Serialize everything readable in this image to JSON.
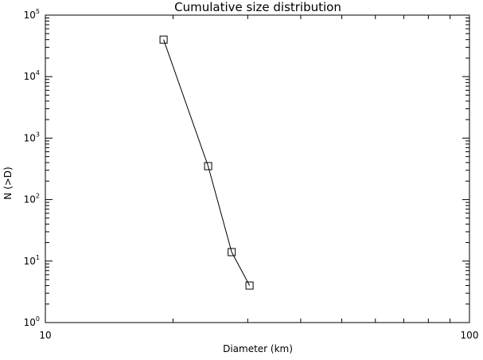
{
  "chart_data": {
    "type": "line",
    "title": "Cumulative size distribution",
    "xlabel": "Diameter (km)",
    "ylabel": "N (>D)",
    "xscale": "log",
    "yscale": "log",
    "xlim": [
      10,
      100
    ],
    "ylim": [
      1,
      100000
    ],
    "x_tick_labels": [
      "10",
      "100"
    ],
    "y_tick_labels": [
      {
        "base": "10",
        "exp": "0"
      },
      {
        "base": "10",
        "exp": "1"
      },
      {
        "base": "10",
        "exp": "2"
      },
      {
        "base": "10",
        "exp": "3"
      },
      {
        "base": "10",
        "exp": "4"
      },
      {
        "base": "10",
        "exp": "5"
      }
    ],
    "marker": "square",
    "grid": false,
    "series": [
      {
        "x": [
          19.0,
          24.2,
          27.5,
          30.3
        ],
        "y": [
          40000,
          350,
          14,
          4
        ]
      }
    ]
  }
}
